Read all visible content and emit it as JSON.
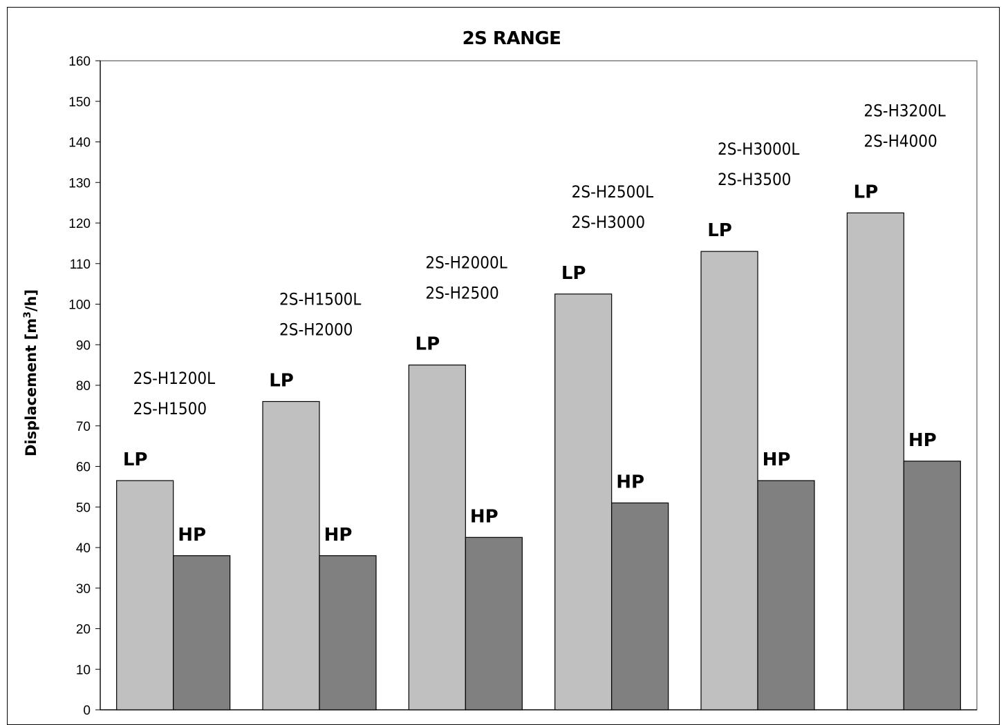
{
  "chart_data": {
    "type": "bar",
    "title": "2S RANGE",
    "ylabel_prefix": "Displacement [m",
    "ylabel_sup": "3",
    "ylabel_suffix": "/h]",
    "ylim": [
      0,
      160
    ],
    "yticks": [
      0,
      10,
      20,
      30,
      40,
      50,
      60,
      70,
      80,
      90,
      100,
      110,
      120,
      130,
      140,
      150,
      160
    ],
    "grid": false,
    "categories": [
      [
        "2S-H1200L",
        "2S-H1500"
      ],
      [
        "2S-H1500L",
        "2S-H2000"
      ],
      [
        "2S-H2000L",
        "2S-H2500"
      ],
      [
        "2S-H2500L",
        "2S-H3000"
      ],
      [
        "2S-H3000L",
        "2S-H3500"
      ],
      [
        "2S-H3200L",
        "2S-H4000"
      ]
    ],
    "series": [
      {
        "name": "LP",
        "color": "#c0c0c0",
        "values": [
          56.5,
          76,
          85,
          102.5,
          113,
          122.5
        ]
      },
      {
        "name": "HP",
        "color": "#808080",
        "values": [
          38,
          38,
          42.5,
          51,
          56.5,
          61.3
        ]
      }
    ]
  }
}
